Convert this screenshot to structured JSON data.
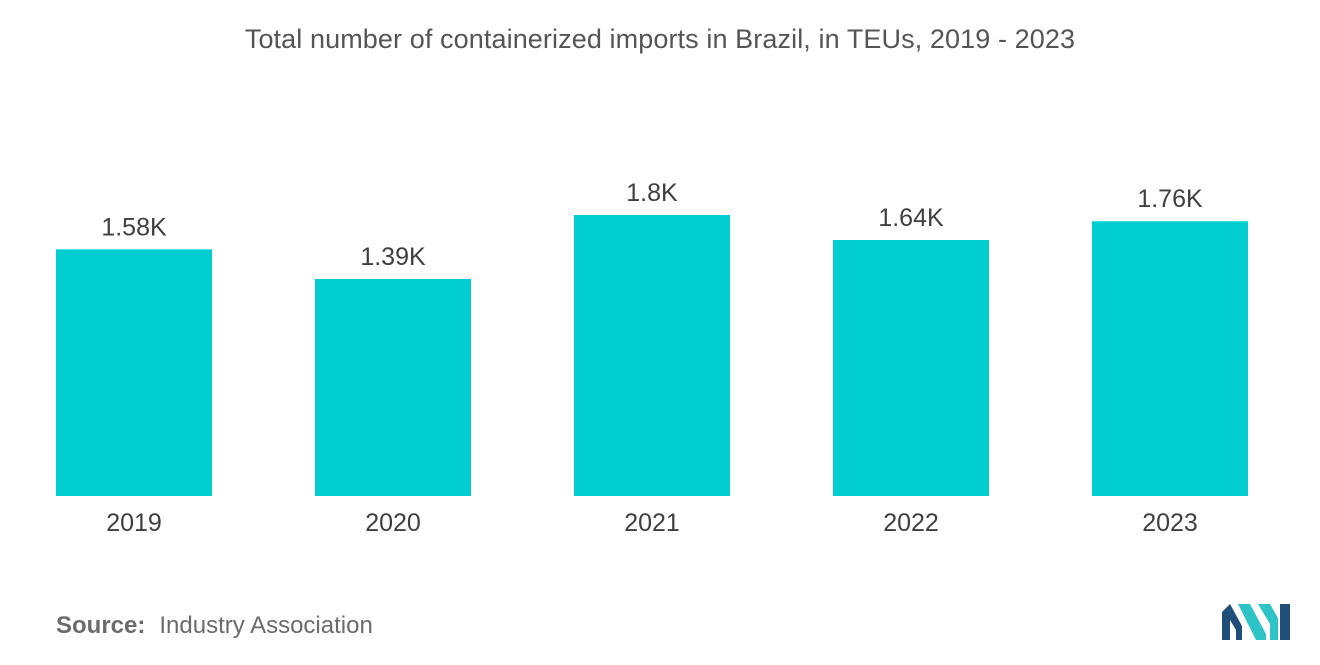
{
  "chart_data": {
    "type": "bar",
    "title": "Total number of containerized imports in Brazil, in TEUs, 2019 - 2023",
    "categories": [
      "2019",
      "2020",
      "2021",
      "2022",
      "2023"
    ],
    "values": [
      1.58,
      1.39,
      1.8,
      1.64,
      1.76
    ],
    "value_labels": [
      "1.58K",
      "1.39K",
      "1.8K",
      "1.64K",
      "1.76K"
    ],
    "xlabel": "",
    "ylabel": "",
    "ylim": [
      0,
      1.8
    ],
    "grid": false,
    "bar_color": "#00CED1"
  },
  "source": {
    "label": "Source:",
    "text": "Industry Association"
  },
  "logo": {
    "name": "mordor-intelligence-logo",
    "colors": [
      "#1F4E79",
      "#2EC4C7"
    ]
  }
}
